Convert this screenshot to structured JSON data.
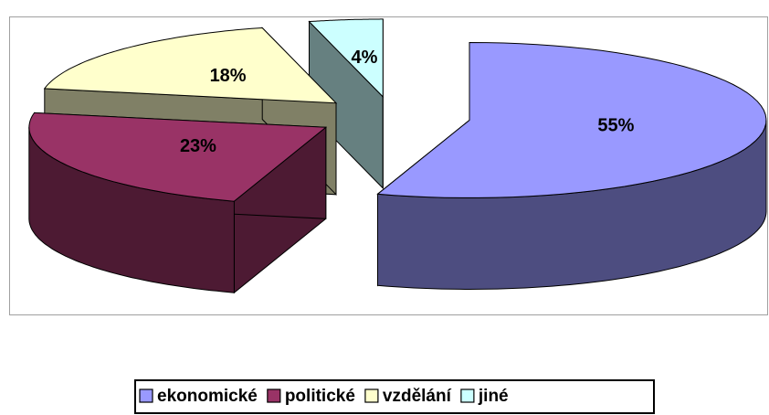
{
  "chart_data": {
    "type": "pie3d",
    "categories": [
      "ekonomické",
      "politické",
      "vzdělání",
      "jiné"
    ],
    "values": [
      55,
      23,
      18,
      4
    ],
    "value_labels": [
      "55%",
      "23%",
      "18%",
      "4%"
    ],
    "colors": [
      "#9999ff",
      "#993366",
      "#ffffcc",
      "#ccffff"
    ],
    "legend": "bottom"
  }
}
